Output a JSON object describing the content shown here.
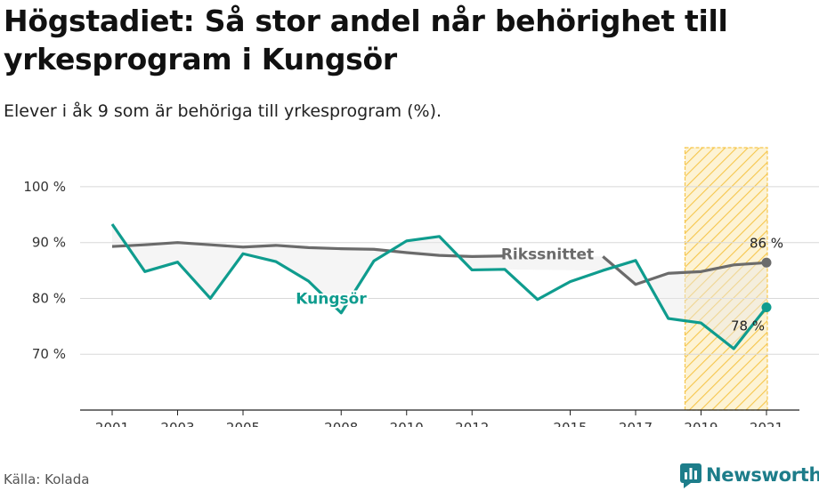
{
  "title": "Högstadiet: Så stor andel når behörighet till yrkesprogram i Kungsör",
  "subtitle": "Elever i åk 9 som är behöriga till yrkesprogram (%).",
  "source": "Källa: Kolada",
  "brand": {
    "name": "Newsworthy",
    "icon": "newsworthy-chart-bubble-icon",
    "color": "#1d7d8a"
  },
  "colors": {
    "kungsor": "#0f9c8e",
    "riksnittet": "#6b6b6b",
    "highlight_stroke": "#f6c64c",
    "highlight_fill": "#fdf3d4",
    "gap_fill": "#e8e8e8",
    "grid": "#d8d8d8"
  },
  "chart_data": {
    "type": "line",
    "x": [
      2001,
      2002,
      2003,
      2004,
      2005,
      2006,
      2007,
      2008,
      2009,
      2010,
      2011,
      2012,
      2013,
      2014,
      2015,
      2016,
      2017,
      2018,
      2019,
      2020,
      2021
    ],
    "xticks": [
      2001,
      2003,
      2005,
      2008,
      2010,
      2012,
      2015,
      2017,
      2019,
      2021
    ],
    "xtick_labels": [
      "2001",
      "2003",
      "2005",
      "2008",
      "2010",
      "2012",
      "2015",
      "2017",
      "2019",
      "2021"
    ],
    "ylim": [
      60,
      107
    ],
    "yticks": [
      70,
      80,
      90,
      100
    ],
    "ytick_labels": [
      "70 %",
      "80 %",
      "90 %",
      "100 %"
    ],
    "grid": true,
    "highlight_range": [
      2019,
      2021
    ],
    "series": [
      {
        "name": "Rikssnittet",
        "key": "riksnittet",
        "values": [
          89.3,
          89.6,
          90.0,
          89.6,
          89.2,
          89.5,
          89.1,
          88.9,
          88.8,
          88.2,
          87.7,
          87.5,
          87.6,
          null,
          null,
          87.5,
          82.5,
          84.5,
          84.8,
          86.0,
          86.4
        ],
        "end_label": "86 %"
      },
      {
        "name": "Kungsör",
        "key": "kungsor",
        "values": [
          93.3,
          84.8,
          86.5,
          80.0,
          88.0,
          86.6,
          83.1,
          77.4,
          86.7,
          90.3,
          91.1,
          85.1,
          85.2,
          79.8,
          83.0,
          85.0,
          86.8,
          76.4,
          75.6,
          71.0,
          78.4
        ],
        "end_label": "78 %"
      }
    ]
  }
}
